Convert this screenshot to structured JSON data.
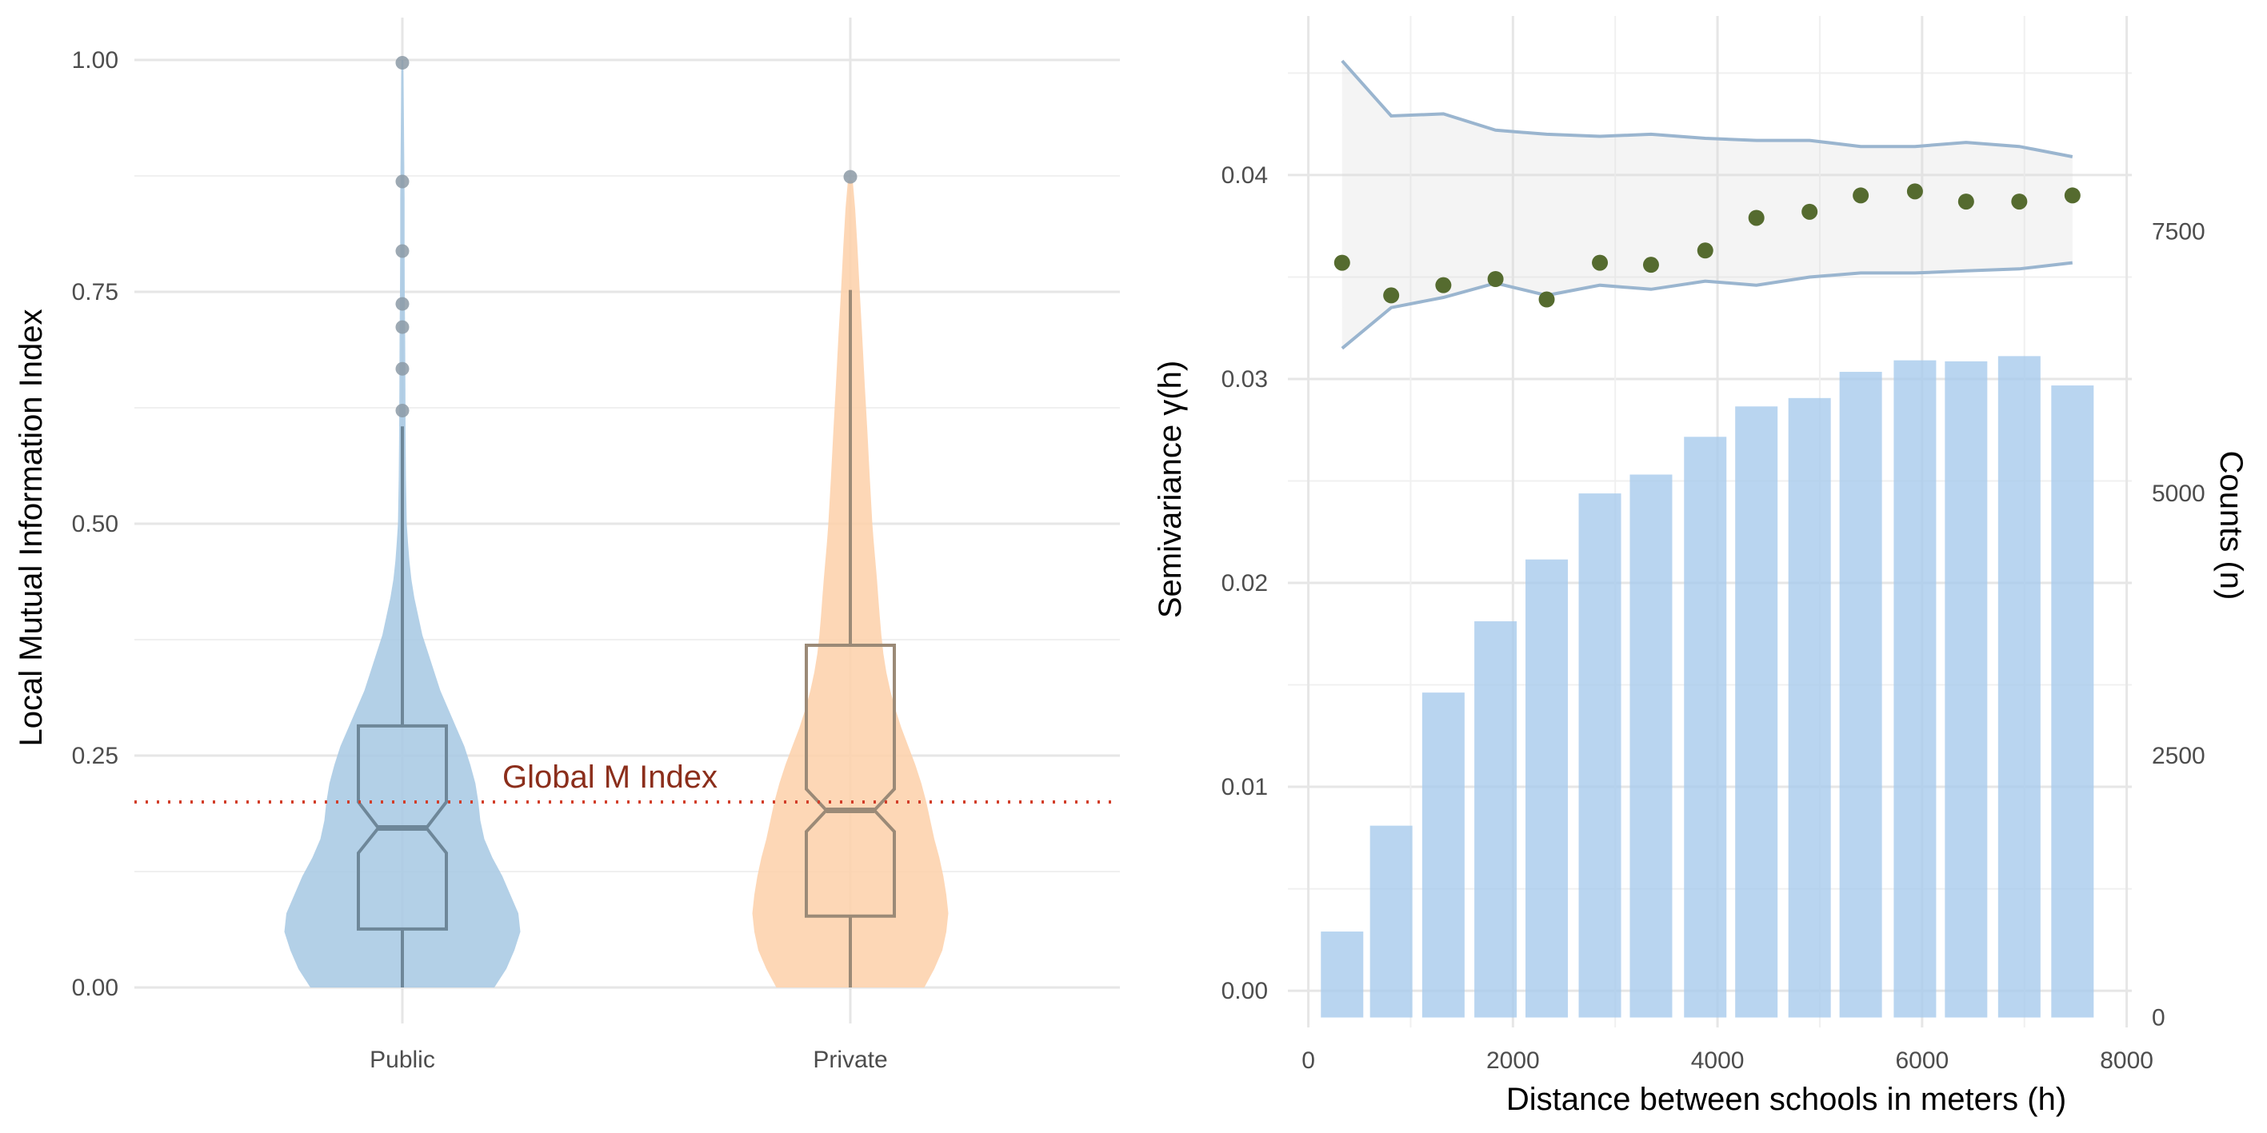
{
  "chart_data": [
    {
      "type": "violin",
      "ylabel": "Local Mutual Information Index",
      "xlabel": "",
      "ylim": [
        0,
        1
      ],
      "y_ticks": [
        "0.00",
        "0.25",
        "0.50",
        "0.75",
        "1.00"
      ],
      "y_tick_values": [
        0,
        0.25,
        0.5,
        0.75,
        1.0
      ],
      "grid": true,
      "categories": [
        "Public",
        "Private"
      ],
      "groups": [
        {
          "name": "Public",
          "color": "#a6c8e3",
          "box_color": "#6e8799",
          "boxplot": {
            "min": 0,
            "q1": 0.063,
            "median": 0.172,
            "q3": 0.282,
            "notch_low": 0.145,
            "notch_high": 0.2,
            "whisker_high": 0.605
          },
          "outliers": [
            0.622,
            0.667,
            0.712,
            0.737,
            0.794,
            0.869,
            0.997
          ],
          "density": [
            [
              0,
              0.46
            ],
            [
              0.02,
              0.52
            ],
            [
              0.04,
              0.56
            ],
            [
              0.06,
              0.59
            ],
            [
              0.08,
              0.58
            ],
            [
              0.1,
              0.54
            ],
            [
              0.12,
              0.5
            ],
            [
              0.14,
              0.45
            ],
            [
              0.16,
              0.41
            ],
            [
              0.18,
              0.39
            ],
            [
              0.2,
              0.38
            ],
            [
              0.22,
              0.365
            ],
            [
              0.24,
              0.34
            ],
            [
              0.26,
              0.31
            ],
            [
              0.28,
              0.27
            ],
            [
              0.3,
              0.23
            ],
            [
              0.32,
              0.19
            ],
            [
              0.34,
              0.16
            ],
            [
              0.36,
              0.13
            ],
            [
              0.38,
              0.1
            ],
            [
              0.4,
              0.08
            ],
            [
              0.42,
              0.06
            ],
            [
              0.44,
              0.045
            ],
            [
              0.46,
              0.035
            ],
            [
              0.48,
              0.028
            ],
            [
              0.5,
              0.022
            ],
            [
              0.55,
              0.018
            ],
            [
              0.6,
              0.016
            ],
            [
              0.65,
              0.015
            ],
            [
              0.7,
              0.014
            ],
            [
              0.75,
              0.012
            ],
            [
              0.8,
              0.011
            ],
            [
              0.85,
              0.011
            ],
            [
              0.9,
              0.009
            ],
            [
              0.95,
              0.007
            ],
            [
              0.98,
              0.006
            ],
            [
              1.0,
              0.004
            ]
          ]
        },
        {
          "name": "Private",
          "color": "#fdd0a9",
          "box_color": "#9b8a77",
          "boxplot": {
            "min": 0,
            "q1": 0.077,
            "median": 0.191,
            "q3": 0.369,
            "notch_low": 0.168,
            "notch_high": 0.214,
            "whisker_high": 0.752
          },
          "outliers": [
            0.874
          ],
          "density": [
            [
              0,
              0.37
            ],
            [
              0.02,
              0.42
            ],
            [
              0.04,
              0.46
            ],
            [
              0.06,
              0.48
            ],
            [
              0.08,
              0.49
            ],
            [
              0.1,
              0.48
            ],
            [
              0.12,
              0.465
            ],
            [
              0.14,
              0.445
            ],
            [
              0.16,
              0.42
            ],
            [
              0.18,
              0.4
            ],
            [
              0.2,
              0.38
            ],
            [
              0.22,
              0.355
            ],
            [
              0.24,
              0.325
            ],
            [
              0.26,
              0.29
            ],
            [
              0.28,
              0.255
            ],
            [
              0.3,
              0.225
            ],
            [
              0.32,
              0.2
            ],
            [
              0.34,
              0.18
            ],
            [
              0.36,
              0.165
            ],
            [
              0.38,
              0.155
            ],
            [
              0.4,
              0.147
            ],
            [
              0.42,
              0.14
            ],
            [
              0.44,
              0.133
            ],
            [
              0.46,
              0.125
            ],
            [
              0.48,
              0.117
            ],
            [
              0.5,
              0.11
            ],
            [
              0.55,
              0.097
            ],
            [
              0.6,
              0.085
            ],
            [
              0.65,
              0.072
            ],
            [
              0.7,
              0.06
            ],
            [
              0.75,
              0.047
            ],
            [
              0.8,
              0.035
            ],
            [
              0.84,
              0.024
            ],
            [
              0.87,
              0.012
            ]
          ]
        }
      ],
      "reference_line": {
        "label": "Global M Index",
        "y": 0.2,
        "color": "#d23e2a",
        "label_color": "#8b2e1b"
      }
    },
    {
      "type": "scatter+bar",
      "xlabel": "Distance between schools in meters (h)",
      "ylabel": "Semivariance γ(h)",
      "y2label": "Counts (n)",
      "xlim": [
        -200,
        8050
      ],
      "ylim": [
        -0.0018,
        0.0478
      ],
      "y2lim": [
        -95,
        9555
      ],
      "x_ticks": [
        "0",
        "2000",
        "4000",
        "6000",
        "8000"
      ],
      "x_tick_values": [
        0,
        2000,
        4000,
        6000,
        8000
      ],
      "y_ticks": [
        "0.00",
        "0.01",
        "0.02",
        "0.03",
        "0.04"
      ],
      "y_tick_values": [
        0,
        0.01,
        0.02,
        0.03,
        0.04
      ],
      "y2_ticks": [
        "0",
        "2500",
        "5000",
        "7500"
      ],
      "y2_tick_values": [
        0,
        2500,
        5000,
        7500
      ],
      "grid": true,
      "x": [
        330,
        810,
        1320,
        1830,
        2330,
        2850,
        3350,
        3880,
        4380,
        4900,
        5400,
        5930,
        6430,
        6950,
        7470
      ],
      "series": [
        {
          "kind": "points",
          "color": "#556b2f",
          "values": [
            0.0357,
            0.0341,
            0.0346,
            0.0349,
            0.0339,
            0.0357,
            0.0356,
            0.0363,
            0.0379,
            0.0382,
            0.039,
            0.0392,
            0.0387,
            0.0387,
            0.039
          ]
        },
        {
          "kind": "envelope_upper",
          "color": "#9ab5cf",
          "values": [
            0.0456,
            0.0429,
            0.043,
            0.0422,
            0.042,
            0.0419,
            0.042,
            0.0418,
            0.0417,
            0.0417,
            0.0414,
            0.0414,
            0.0416,
            0.0414,
            0.0409
          ]
        },
        {
          "kind": "envelope_lower",
          "color": "#9ab5cf",
          "values": [
            0.0315,
            0.0335,
            0.034,
            0.0347,
            0.0341,
            0.0346,
            0.0344,
            0.0348,
            0.0346,
            0.035,
            0.0352,
            0.0352,
            0.0353,
            0.0354,
            0.0357
          ]
        },
        {
          "kind": "bars",
          "axis": "right",
          "color": "#a8caec",
          "values": [
            820,
            1830,
            3100,
            3780,
            4370,
            5000,
            5180,
            5540,
            5830,
            5910,
            6160,
            6270,
            6260,
            6310,
            6030
          ]
        }
      ]
    }
  ]
}
